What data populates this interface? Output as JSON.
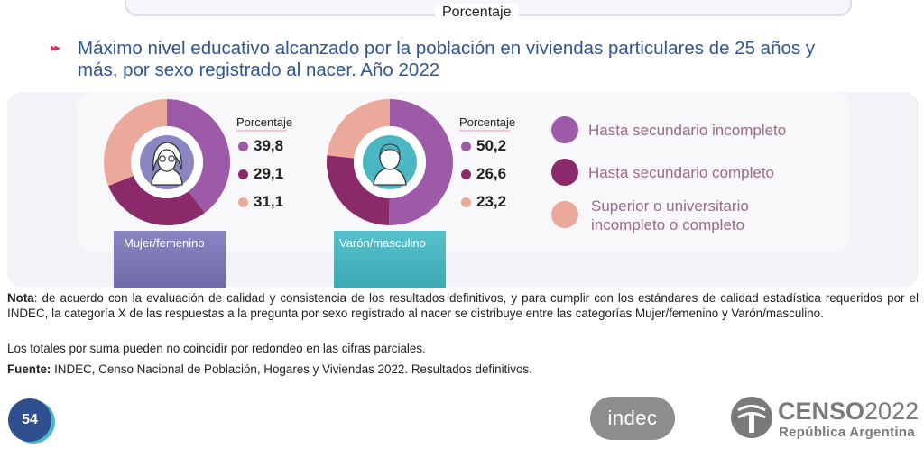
{
  "header": {
    "unit_label": "Porcentaje"
  },
  "title": "Máximo nivel educativo alcanzado por la población en viviendas particulares de 25 años y más, por sexo registrado al nacer. Año 2022",
  "colors": {
    "incompleto": "#9d5aa8",
    "completo": "#8b2a6a",
    "superior": "#eaa99a",
    "mujer_bar": "#7b76b5",
    "varon_bar": "#4bb7c2",
    "title": "#2f5597"
  },
  "chart_data": {
    "type": "pie",
    "title": "Máximo nivel educativo alcanzado por la población en viviendas particulares de 25 años y más, por sexo registrado al nacer. Año 2022",
    "value_label": "Porcentaje",
    "categories": [
      "Hasta secundario incompleto",
      "Hasta secundario completo",
      "Superior o universitario incompleto o completo"
    ],
    "series": [
      {
        "name": "Mujer/femenino",
        "values": [
          39.8,
          29.1,
          31.1
        ]
      },
      {
        "name": "Varón/masculino",
        "values": [
          50.2,
          26.6,
          23.2
        ]
      }
    ],
    "value_labels": [
      [
        "39,8",
        "29,1",
        "31,1"
      ],
      [
        "50,2",
        "26,6",
        "23,2"
      ]
    ],
    "legend_position": "right"
  },
  "legend": {
    "items": [
      {
        "label": "Hasta secundario incompleto",
        "color": "#9d5aa8"
      },
      {
        "label": "Hasta secundario completo",
        "color": "#8b2a6a"
      },
      {
        "label_line1": "Superior o universitario",
        "label_line2": "incompleto o completo",
        "color": "#eaa99a"
      }
    ]
  },
  "notes": {
    "nota_label": "Nota",
    "nota_text": ": de acuerdo con la evaluación de calidad y consistencia de los resultados definitivos, y para cumplir con los estándares de calidad estadística requeridos por el INDEC, la categoría X de las respuestas a la pregunta por sexo registrado al nacer se distribuye entre las categorías Mujer/femenino y Varón/masculino.",
    "totales": "Los totales por suma pueden no coincidir por redondeo en las cifras parciales.",
    "fuente_label": "Fuente:",
    "fuente_text": " INDEC, Censo Nacional de Población, Hogares y Viviendas 2022. Resultados definitivos."
  },
  "footer": {
    "page_number": "54",
    "indec_logo": "indec",
    "censo_word_bold": "CENSO",
    "censo_year": "2022",
    "censo_sub": "República Argentina"
  }
}
